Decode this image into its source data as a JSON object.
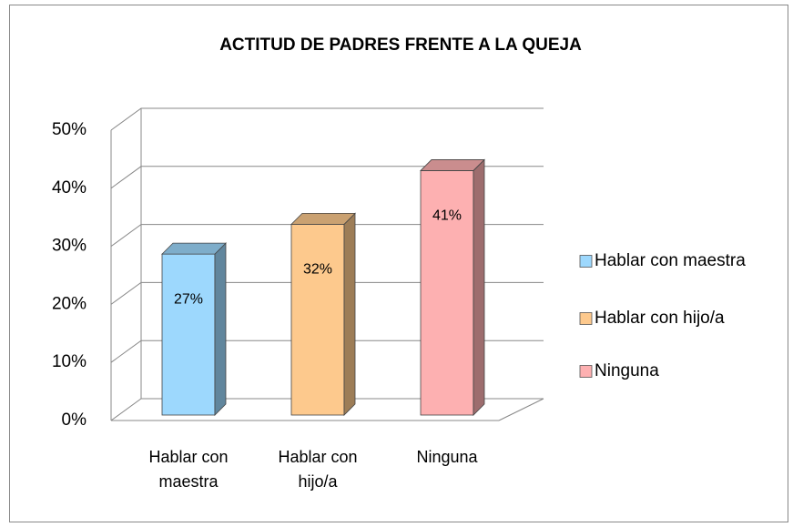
{
  "chart_data": {
    "type": "bar3d",
    "title": "ACTITUD DE PADRES FRENTE A LA QUEJA",
    "categories": [
      "Hablar con maestra",
      "Hablar con hijo/a",
      "Ninguna"
    ],
    "values": [
      27,
      32,
      41
    ],
    "value_labels": [
      "27%",
      "32%",
      "41%"
    ],
    "colors": [
      "#9dd8fd",
      "#fdc98d",
      "#fdb0b1"
    ],
    "ylim": [
      0,
      50
    ],
    "yticks": [
      {
        "value": 0,
        "label": "0%"
      },
      {
        "value": 10,
        "label": "10%"
      },
      {
        "value": 20,
        "label": "20%"
      },
      {
        "value": 30,
        "label": "30%"
      },
      {
        "value": 40,
        "label": "40%"
      },
      {
        "value": 50,
        "label": "50%"
      }
    ],
    "grid": true,
    "legend": "right"
  }
}
